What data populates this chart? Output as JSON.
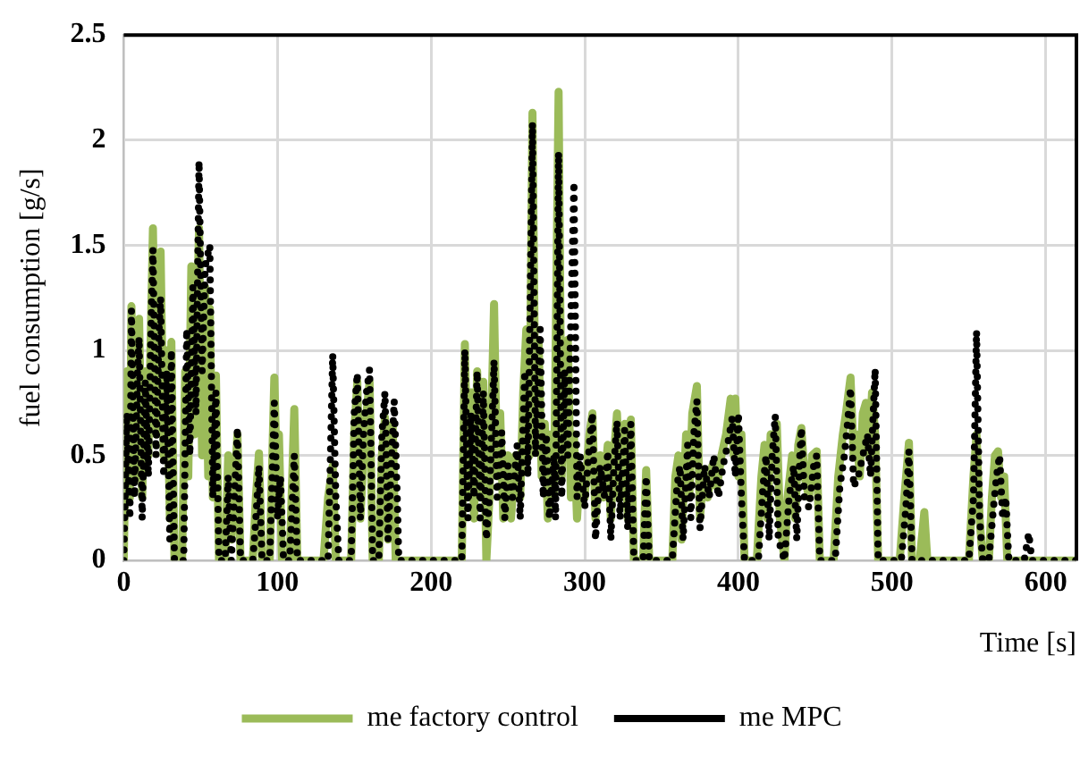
{
  "chart_data": {
    "type": "line",
    "xlabel": "Time [s]",
    "ylabel": "fuel consumption [g/s]",
    "xlim": [
      0,
      620
    ],
    "xticks": [
      0,
      100,
      200,
      300,
      400,
      500,
      600
    ],
    "ylim": [
      0,
      2.5
    ],
    "yticks": [
      0,
      0.5,
      1,
      1.5,
      2,
      2.5
    ],
    "grid": true,
    "legend": "bottom",
    "marker": "none",
    "series": [
      {
        "name": "me factory control",
        "color": "#9bbb59",
        "line_style": "solid",
        "x": [
          0,
          2,
          4,
          5,
          7,
          9,
          10,
          12,
          14,
          16,
          19,
          21,
          24,
          26,
          28,
          30,
          31,
          33,
          38,
          40,
          42,
          44,
          46,
          49,
          51,
          53,
          55,
          56,
          58,
          60,
          62,
          66,
          68,
          70,
          72,
          74,
          76,
          84,
          86,
          88,
          90,
          95,
          98,
          100,
          101,
          103,
          108,
          111,
          113,
          130,
          133,
          136,
          138,
          148,
          150,
          152,
          154,
          156,
          158,
          160,
          162,
          166,
          168,
          170,
          172,
          175,
          177,
          220,
          222,
          224,
          226,
          228,
          230,
          232,
          234,
          236,
          238,
          241,
          243,
          245,
          247,
          250,
          252,
          255,
          258,
          260,
          262,
          264,
          266,
          268,
          270,
          272,
          274,
          276,
          278,
          280,
          283,
          285,
          287,
          289,
          291,
          293,
          295,
          297,
          300,
          303,
          305,
          307,
          310,
          312,
          315,
          317,
          319,
          321,
          323,
          326,
          328,
          330,
          332,
          338,
          340,
          342,
          357,
          359,
          361,
          363,
          366,
          368,
          370,
          373,
          375,
          377,
          380,
          383,
          386,
          389,
          392,
          395,
          397,
          398,
          400,
          402,
          404,
          412,
          415,
          417,
          419,
          421,
          423,
          425,
          427,
          430,
          432,
          435,
          437,
          439,
          441,
          443,
          446,
          448,
          451,
          453,
          462,
          465,
          468,
          470,
          473,
          475,
          477,
          479,
          481,
          483,
          485,
          487,
          489,
          491,
          505,
          508,
          511,
          513,
          518,
          521,
          523,
          550,
          553,
          555,
          557,
          559,
          563,
          565,
          567,
          569,
          571,
          573,
          575,
          620
        ],
        "values": [
          0,
          0.9,
          0.3,
          1.21,
          0.4,
          0.8,
          1.15,
          0.3,
          0.9,
          0.5,
          1.58,
          0.6,
          1.47,
          0.5,
          1.0,
          0.2,
          1.04,
          0,
          0,
          0.9,
          0.4,
          1.4,
          0.6,
          1.58,
          0.5,
          1.3,
          0.4,
          1.2,
          0.3,
          0.88,
          0,
          0,
          0.5,
          0.1,
          0.35,
          0.6,
          0,
          0,
          0.3,
          0.51,
          0,
          0,
          0.87,
          0.3,
          0.6,
          0,
          0,
          0.72,
          0,
          0,
          0.3,
          0.45,
          0,
          0,
          0.6,
          0.85,
          0.2,
          0.5,
          0.7,
          0.85,
          0,
          0,
          0.5,
          0.68,
          0.1,
          0.65,
          0,
          0,
          1.03,
          0.3,
          0.8,
          0.2,
          0.9,
          0.3,
          0.85,
          0,
          0.3,
          1.22,
          0.4,
          0.7,
          0.2,
          0.5,
          0.2,
          0.5,
          0.3,
          0.8,
          1.1,
          0.5,
          2.13,
          0.6,
          1.05,
          0.4,
          0.65,
          0.2,
          0.6,
          0.3,
          2.23,
          0.4,
          1.0,
          1.05,
          0.3,
          0.6,
          0.2,
          0.45,
          0.3,
          0.6,
          0.7,
          0.2,
          0.5,
          0.3,
          0.55,
          0.2,
          0.5,
          0.7,
          0.3,
          0.65,
          0.2,
          0.67,
          0,
          0,
          0.43,
          0,
          0,
          0.4,
          0.5,
          0.1,
          0.6,
          0.3,
          0.7,
          0.83,
          0.2,
          0.4,
          0.3,
          0.45,
          0.35,
          0.5,
          0.6,
          0.77,
          0.5,
          0.77,
          0.4,
          0.6,
          0,
          0,
          0.4,
          0.55,
          0.2,
          0.6,
          0.5,
          0.65,
          0.2,
          0,
          0.3,
          0.5,
          0.2,
          0.55,
          0.63,
          0.4,
          0.3,
          0.5,
          0.52,
          0,
          0,
          0.4,
          0.6,
          0.7,
          0.87,
          0.5,
          0.6,
          0.4,
          0.7,
          0.75,
          0.5,
          0.8,
          0.6,
          0,
          0,
          0.3,
          0.56,
          0,
          0,
          0.23,
          0,
          0,
          0.4,
          0.6,
          0.2,
          0,
          0,
          0.3,
          0.5,
          0.52,
          0.3,
          0.4,
          0,
          0
        ]
      },
      {
        "name": "me MPC",
        "color": "#000000",
        "line_style": "dotted",
        "x": [
          0,
          2,
          4,
          5,
          7,
          9,
          10,
          12,
          14,
          16,
          18,
          19,
          21,
          23,
          24,
          26,
          28,
          30,
          31,
          33,
          39,
          41,
          43,
          45,
          47,
          49,
          51,
          53,
          56,
          58,
          60,
          62,
          66,
          68,
          70,
          72,
          74,
          76,
          84,
          86,
          88,
          90,
          95,
          98,
          100,
          102,
          104,
          108,
          111,
          113,
          133,
          136,
          138,
          140,
          148,
          150,
          152,
          154,
          156,
          158,
          160,
          162,
          166,
          168,
          170,
          172,
          176,
          178,
          179,
          220,
          222,
          224,
          226,
          228,
          230,
          232,
          234,
          236,
          238,
          241,
          243,
          246,
          248,
          250,
          253,
          256,
          258,
          261,
          263,
          266,
          268,
          271,
          273,
          275,
          277,
          280,
          281,
          283,
          285,
          287,
          289,
          293,
          295,
          297,
          300,
          303,
          305,
          307,
          310,
          313,
          315,
          317,
          319,
          321,
          323,
          326,
          328,
          330,
          332,
          338,
          340,
          342,
          357,
          360,
          362,
          364,
          367,
          369,
          371,
          373,
          375,
          378,
          381,
          384,
          387,
          390,
          393,
          396,
          398,
          400,
          402,
          404,
          413,
          416,
          418,
          420,
          422,
          424,
          426,
          430,
          433,
          436,
          438,
          440,
          441,
          443,
          446,
          449,
          451,
          453,
          463,
          466,
          469,
          471,
          473,
          475,
          478,
          481,
          484,
          486,
          489,
          491,
          506,
          509,
          511,
          513,
          550,
          553,
          555,
          557,
          559,
          563,
          566,
          568,
          570,
          572,
          574,
          576,
          586,
          589,
          591,
          620
        ],
        "values": [
          0,
          0.7,
          0.2,
          1.19,
          0.3,
          0.9,
          1.06,
          0.2,
          0.85,
          0.4,
          1.2,
          1.48,
          0.5,
          1.1,
          1.25,
          0.4,
          0.9,
          0.1,
          1.0,
          0,
          0,
          1.1,
          0.5,
          1.3,
          0.7,
          1.9,
          0.9,
          1.4,
          1.5,
          0.3,
          0.8,
          0,
          0,
          0.4,
          0,
          0.3,
          0.63,
          0,
          0,
          0.2,
          0.45,
          0,
          0,
          0.75,
          0.2,
          0.4,
          0,
          0,
          0.5,
          0,
          0,
          0.98,
          0.3,
          0,
          0,
          0.7,
          0.89,
          0.2,
          0.6,
          0.8,
          0.91,
          0,
          0,
          0.6,
          0.8,
          0.1,
          0.76,
          0.3,
          0,
          0,
          1.0,
          0.2,
          0.7,
          0.3,
          0.9,
          0.2,
          0.8,
          0.1,
          0.3,
          0.95,
          0.3,
          0.61,
          0.2,
          0.45,
          0.3,
          0.55,
          0.2,
          0.9,
          0.4,
          2.08,
          0.5,
          1.1,
          0.3,
          0.6,
          0.2,
          0.5,
          0.2,
          1.94,
          0.3,
          0.9,
          0.5,
          1.8,
          0.3,
          0.5,
          0.25,
          0.55,
          0.7,
          0.1,
          0.45,
          0.3,
          0.52,
          0.1,
          0.45,
          0.66,
          0.2,
          0.62,
          0.15,
          0.65,
          0,
          0,
          0.4,
          0,
          0,
          0.35,
          0.45,
          0.1,
          0.55,
          0.2,
          0.6,
          0.76,
          0.15,
          0.45,
          0.3,
          0.5,
          0.3,
          0.45,
          0.55,
          0.68,
          0.4,
          0.7,
          0.3,
          0,
          0,
          0.35,
          0.5,
          0.1,
          0.5,
          0.69,
          0.1,
          0,
          0.3,
          0.45,
          0.1,
          0.5,
          0.63,
          0.3,
          0.25,
          0.45,
          0.5,
          0,
          0,
          0.35,
          0.5,
          0.65,
          0.82,
          0.35,
          0.4,
          0.5,
          0.6,
          0.4,
          0.91,
          0,
          0,
          0.25,
          0.52,
          0,
          0,
          0.3,
          1.09,
          0.2,
          0,
          0,
          0.25,
          0.4,
          0.5,
          0.2,
          0.3,
          0,
          0,
          0.13,
          0,
          0
        ]
      }
    ]
  }
}
